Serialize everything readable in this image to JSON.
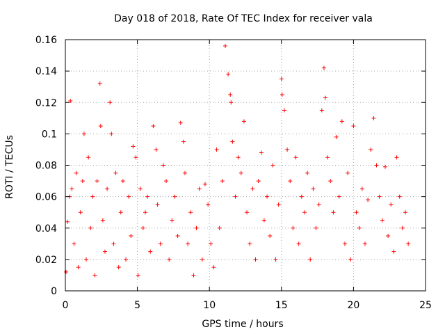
{
  "chart_data": {
    "type": "scatter",
    "title": "Day 018 of 2018, Rate Of TEC Index for receiver vala",
    "xlabel": "GPS time / hours",
    "ylabel": "ROTI / TECUs",
    "xlim": [
      0,
      25
    ],
    "ylim": [
      0,
      0.16
    ],
    "xticks": [
      0,
      5,
      10,
      15,
      20,
      25
    ],
    "yticks": [
      0,
      0.02,
      0.04,
      0.06,
      0.08,
      0.1,
      0.12,
      0.14,
      0.16
    ],
    "xtick_labels": [
      "0",
      "5",
      "10",
      "15",
      "20",
      "25"
    ],
    "ytick_labels": [
      "0",
      "0.02",
      "0.04",
      "0.06",
      "0.08",
      "0.1",
      "0.12",
      "0.14",
      "0.16"
    ],
    "grid": true,
    "marker": "plus",
    "color": "#ff0000",
    "series": [
      {
        "name": "ROTI",
        "x": [
          0.05,
          0.15,
          0.3,
          0.35,
          0.45,
          0.6,
          0.75,
          0.9,
          1.05,
          1.2,
          1.3,
          1.45,
          1.6,
          1.75,
          1.9,
          2.05,
          2.2,
          2.4,
          2.45,
          2.6,
          2.75,
          2.9,
          3.1,
          3.2,
          3.35,
          3.5,
          3.7,
          3.85,
          4.0,
          4.2,
          4.4,
          4.55,
          4.7,
          4.9,
          5.05,
          5.2,
          5.4,
          5.55,
          5.7,
          5.9,
          6.1,
          6.3,
          6.4,
          6.6,
          6.8,
          7.0,
          7.2,
          7.4,
          7.6,
          7.8,
          8.0,
          8.2,
          8.3,
          8.5,
          8.7,
          8.9,
          9.1,
          9.3,
          9.5,
          9.7,
          9.9,
          10.1,
          10.3,
          10.5,
          10.7,
          10.9,
          11.1,
          11.3,
          11.45,
          11.5,
          11.6,
          11.8,
          12.0,
          12.2,
          12.4,
          12.6,
          12.8,
          13.0,
          13.2,
          13.4,
          13.6,
          13.8,
          14.0,
          14.2,
          14.4,
          14.6,
          14.8,
          15.0,
          15.05,
          15.2,
          15.4,
          15.6,
          15.8,
          16.0,
          16.2,
          16.4,
          16.6,
          16.8,
          17.0,
          17.2,
          17.4,
          17.6,
          17.8,
          17.95,
          18.05,
          18.2,
          18.4,
          18.6,
          18.8,
          19.0,
          19.2,
          19.4,
          19.6,
          19.8,
          20.0,
          20.2,
          20.4,
          20.6,
          20.8,
          21.0,
          21.2,
          21.4,
          21.6,
          21.8,
          22.0,
          22.2,
          22.4,
          22.6,
          22.8,
          23.0,
          23.2,
          23.4,
          23.6,
          23.8
        ],
        "y": [
          0.012,
          0.044,
          0.06,
          0.121,
          0.065,
          0.03,
          0.075,
          0.015,
          0.05,
          0.07,
          0.1,
          0.02,
          0.085,
          0.04,
          0.06,
          0.01,
          0.07,
          0.132,
          0.105,
          0.045,
          0.025,
          0.065,
          0.12,
          0.1,
          0.03,
          0.075,
          0.015,
          0.05,
          0.07,
          0.02,
          0.06,
          0.035,
          0.092,
          0.085,
          0.01,
          0.065,
          0.04,
          0.05,
          0.06,
          0.025,
          0.105,
          0.09,
          0.055,
          0.03,
          0.08,
          0.07,
          0.02,
          0.045,
          0.06,
          0.035,
          0.107,
          0.095,
          0.075,
          0.03,
          0.05,
          0.01,
          0.04,
          0.065,
          0.02,
          0.068,
          0.055,
          0.03,
          0.015,
          0.09,
          0.04,
          0.07,
          0.156,
          0.138,
          0.125,
          0.12,
          0.095,
          0.06,
          0.085,
          0.075,
          0.108,
          0.05,
          0.03,
          0.065,
          0.02,
          0.07,
          0.088,
          0.045,
          0.06,
          0.035,
          0.08,
          0.02,
          0.055,
          0.135,
          0.125,
          0.115,
          0.09,
          0.07,
          0.04,
          0.085,
          0.03,
          0.06,
          0.05,
          0.075,
          0.02,
          0.065,
          0.04,
          0.055,
          0.115,
          0.142,
          0.123,
          0.085,
          0.07,
          0.05,
          0.098,
          0.06,
          0.108,
          0.03,
          0.075,
          0.02,
          0.105,
          0.05,
          0.04,
          0.065,
          0.03,
          0.058,
          0.09,
          0.11,
          0.08,
          0.06,
          0.045,
          0.079,
          0.035,
          0.055,
          0.025,
          0.085,
          0.06,
          0.04,
          0.05,
          0.03
        ]
      }
    ]
  }
}
